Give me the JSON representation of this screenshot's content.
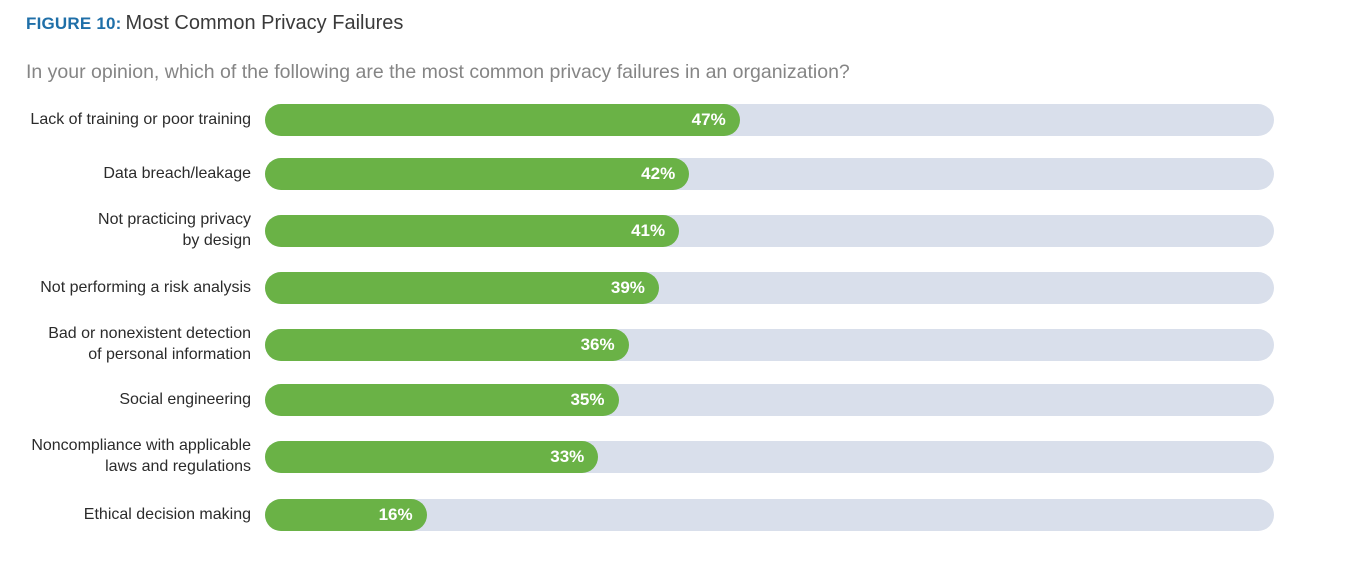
{
  "figure": {
    "label": "FIGURE 10:",
    "title": "Most Common Privacy Failures"
  },
  "subtitle": "In your opinion, which of the following are the most common privacy failures in an organization?",
  "colors": {
    "bar": "#6ab246",
    "track": "#d9dfeb",
    "label_accent": "#1f6fa8"
  },
  "chart_data": {
    "type": "bar",
    "orientation": "horizontal",
    "title": "Most Common Privacy Failures",
    "xlabel": "",
    "ylabel": "",
    "xlim": [
      0,
      100
    ],
    "unit": "%",
    "categories": [
      [
        "Lack of training or poor training"
      ],
      [
        "Data breach/leakage"
      ],
      [
        "Not practicing privacy",
        "by design"
      ],
      [
        "Not performing a risk analysis"
      ],
      [
        "Bad or nonexistent detection",
        "of personal information"
      ],
      [
        "Social engineering"
      ],
      [
        "Noncompliance with applicable",
        "laws and regulations"
      ],
      [
        "Ethical decision making"
      ]
    ],
    "values": [
      47,
      42,
      41,
      39,
      36,
      35,
      33,
      16
    ],
    "value_labels": [
      "47%",
      "42%",
      "41%",
      "39%",
      "36%",
      "35%",
      "33%",
      "16%"
    ]
  }
}
